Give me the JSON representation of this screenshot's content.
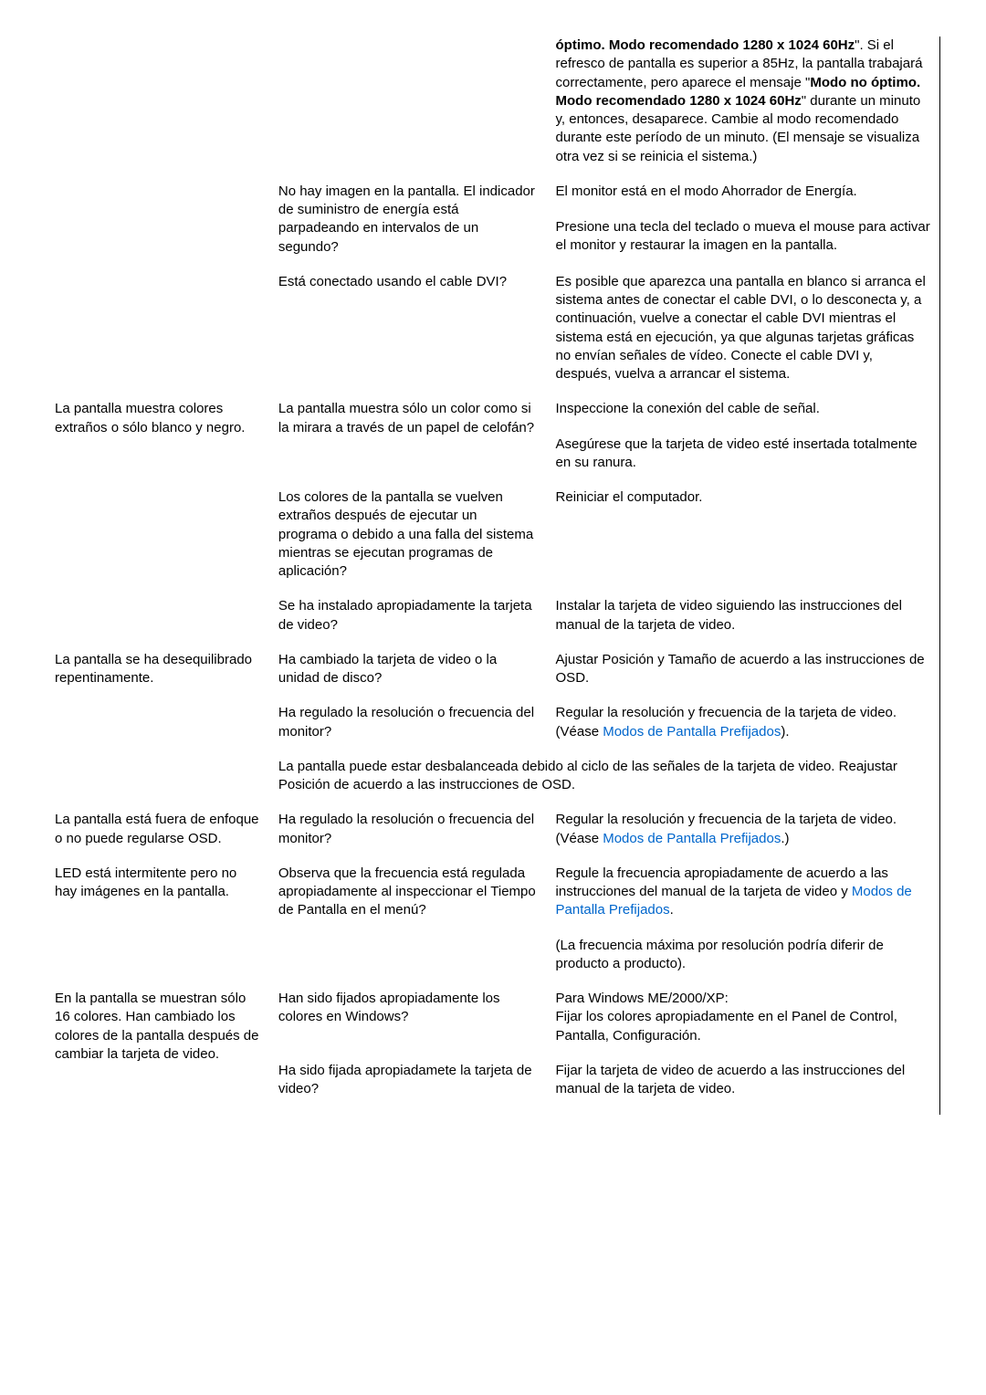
{
  "r1_fix_a": "óptimo. Modo recomendado 1280 x 1024 60Hz",
  "r1_fix_b": "\". Si el refresco de pantalla es superior a 85Hz, la pantalla trabajará correctamente, pero aparece el mensaje \"",
  "r1_fix_c": "Modo no óptimo. Modo recomendado 1280 x 1024 60Hz",
  "r1_fix_d": "\" durante un minuto y, entonces, desaparece. Cambie al modo recomendado durante este período de un minuto. (El mensaje se visualiza otra vez si se reinicia el sistema.)",
  "r2_cause": "No hay imagen en la pantalla. El indicador de suministro de energía está parpadeando en intervalos de un segundo?",
  "r2_fix1": "El monitor está en el modo Ahorrador de Energía.",
  "r2_fix2": "Presione una tecla del teclado o mueva el mouse para activar el monitor y restaurar la imagen en la pantalla.",
  "r3_cause": "Está conectado usando el cable DVI?",
  "r3_fix": "Es posible que aparezca una pantalla en blanco si arranca el sistema antes de conectar el cable DVI, o lo desconecta y, a continuación, vuelve a conectar el cable DVI mientras el sistema está en ejecución, ya que algunas tarjetas gráficas no envían señales de vídeo. Conecte el cable DVI y, después, vuelva a arrancar el sistema.",
  "r4_problem": "La pantalla muestra colores extraños o sólo blanco y negro.",
  "r4_cause": "La pantalla muestra sólo un color como si la mirara a través de un papel de celofán?",
  "r4_fix1": "Inspeccione la conexión del cable de señal.",
  "r4_fix2": "Asegúrese que la tarjeta de video esté insertada totalmente en su ranura.",
  "r5_cause": "Los colores de la pantalla se vuelven extraños después de ejecutar un programa o debido a una falla del sistema mientras se ejecutan programas de aplicación?",
  "r5_fix": "Reiniciar el computador.",
  "r6_cause": "Se ha instalado apropiadamente la tarjeta de video?",
  "r6_fix": "Instalar la tarjeta de video siguiendo las instrucciones del manual de la tarjeta de video.",
  "r7_problem": "La pantalla se ha desequilibrado repentinamente.",
  "r7_cause": "Ha cambiado la tarjeta de video o la unidad de disco?",
  "r7_fix": "Ajustar Posición y Tamaño de acuerdo a las instrucciones de OSD.",
  "r8_cause": "Ha regulado la resolución o frecuencia del monitor?",
  "r8_fix1": "Regular la resolución y frecuencia de la tarjeta de video.",
  "r8_fix2a": "(Véase ",
  "r8_fix2b": "Modos de Pantalla Prefijados",
  "r8_fix2c": ").",
  "r9_full": "La pantalla puede estar desbalanceada debido al ciclo de las señales de la tarjeta de video. Reajustar Posición de acuerdo a las instrucciones de OSD.",
  "r10_problem": "La pantalla está fuera de enfoque o no puede regularse OSD.",
  "r10_cause": "Ha regulado la resolución o frecuencia del monitor?",
  "r10_fix1": "Regular la resolución y frecuencia de la tarjeta de video.",
  "r10_fix2a": "(Véase ",
  "r10_fix2b": "Modos de Pantalla Prefijados",
  "r10_fix2c": ".)",
  "r11_problem": "LED está intermitente pero no hay imágenes en la pantalla.",
  "r11_cause": "Observa que la frecuencia está regulada apropiadamente al inspeccionar el Tiempo de Pantalla en el menú?",
  "r11_fix1a": "Regule la frecuencia apropiadamente de acuerdo a las instrucciones del manual de la tarjeta de video y ",
  "r11_fix1b": "Modos de Pantalla Prefijados",
  "r11_fix1c": ".",
  "r11_fix2": "(La frecuencia máxima por resolución podría diferir de producto a producto).",
  "r12_problem": "En la pantalla se muestran sólo 16 colores. Han cambiado los colores de la pantalla después de cambiar la tarjeta de video.",
  "r12_cause": "Han sido fijados apropiadamente los colores en Windows?",
  "r12_fix1": "Para Windows ME/2000/XP:",
  "r12_fix2": "Fijar los colores apropiadamente en el Panel de Control, Pantalla, Configuración.",
  "r13_cause": "Ha sido fijada apropiadamete la tarjeta de video?",
  "r13_fix": "Fijar la tarjeta de video de acuerdo a las instrucciones del manual de la tarjeta de video."
}
